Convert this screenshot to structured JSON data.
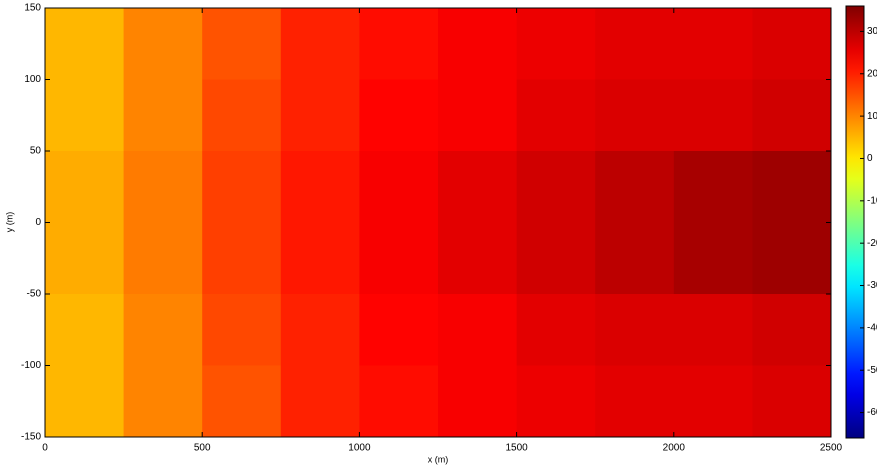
{
  "chart_data": {
    "type": "heatmap",
    "xlabel": "x (m)",
    "ylabel": "y (m)",
    "x": [
      125,
      375,
      625,
      875,
      1125,
      1375,
      1625,
      1875,
      2125,
      2375
    ],
    "y": [
      125,
      75,
      25,
      -25,
      -75,
      -125
    ],
    "values": [
      [
        5,
        10,
        15,
        20,
        22,
        24,
        25,
        26,
        26,
        27
      ],
      [
        5,
        10,
        16,
        20,
        23,
        24,
        26,
        27,
        27,
        28
      ],
      [
        6,
        11,
        17,
        21,
        24,
        26,
        28,
        30,
        32,
        33
      ],
      [
        6,
        11,
        17,
        21,
        24,
        26,
        28,
        30,
        32,
        33
      ],
      [
        5,
        10,
        16,
        20,
        23,
        24,
        26,
        27,
        27,
        28
      ],
      [
        5,
        10,
        15,
        20,
        22,
        24,
        25,
        26,
        26,
        27
      ]
    ],
    "xlim": [
      0,
      2500
    ],
    "xticks": [
      0,
      500,
      1000,
      1500,
      2000,
      2500
    ],
    "ylim": [
      -150,
      150
    ],
    "yticks": [
      -150,
      -100,
      -50,
      0,
      50,
      100,
      150
    ],
    "clim": [
      -66,
      36
    ],
    "cticks": [
      30,
      20,
      10,
      0,
      -10,
      -20,
      -30,
      -40,
      -50,
      -60
    ],
    "colormap": "jet"
  }
}
